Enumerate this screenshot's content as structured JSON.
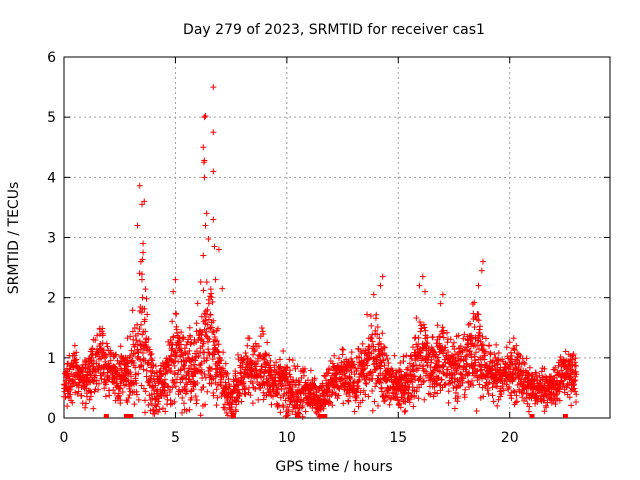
{
  "chart_data": {
    "type": "scatter",
    "title": "Day 279 of 2023, SRMTID for receiver cas1",
    "xlabel": "GPS time / hours",
    "ylabel": "SRMTID / TECUs",
    "xlim": [
      0,
      24.5
    ],
    "ylim": [
      0,
      6
    ],
    "xticks": [
      0,
      5,
      10,
      15,
      20
    ],
    "yticks": [
      0,
      1,
      2,
      3,
      4,
      5,
      6
    ],
    "grid": true,
    "marker": "+",
    "color": "#ff0000",
    "data_end_hours": 23.0,
    "envelope": {
      "description": "approximate typical level and spread of the point cloud over time (GPS hours -> TECU)",
      "hours": [
        0,
        0.5,
        1.0,
        1.5,
        2.0,
        2.5,
        3.0,
        3.5,
        4.0,
        4.5,
        5.0,
        5.5,
        6.0,
        6.5,
        7.0,
        7.5,
        8.0,
        8.5,
        9.0,
        9.5,
        10.0,
        10.5,
        11.0,
        11.5,
        12.0,
        12.5,
        13.0,
        13.5,
        14.0,
        14.5,
        15.0,
        15.5,
        16.0,
        16.5,
        17.0,
        17.5,
        18.0,
        18.5,
        19.0,
        19.5,
        20.0,
        20.5,
        21.0,
        21.5,
        22.0,
        22.5,
        23.0
      ],
      "typical": [
        0.5,
        0.8,
        0.6,
        1.0,
        0.8,
        0.6,
        0.9,
        1.4,
        0.4,
        0.5,
        1.1,
        0.8,
        1.0,
        1.5,
        0.6,
        0.3,
        0.7,
        0.9,
        0.8,
        0.6,
        0.5,
        0.4,
        0.5,
        0.3,
        0.6,
        0.7,
        0.6,
        0.8,
        1.1,
        0.6,
        0.5,
        0.6,
        1.0,
        0.9,
        1.0,
        0.8,
        0.9,
        1.2,
        0.8,
        0.7,
        0.8,
        0.7,
        0.5,
        0.5,
        0.5,
        0.8,
        0.7
      ],
      "spread": [
        0.2,
        0.3,
        0.3,
        0.4,
        0.3,
        0.3,
        0.4,
        0.9,
        0.3,
        0.3,
        0.6,
        0.4,
        0.6,
        0.9,
        0.4,
        0.2,
        0.3,
        0.4,
        0.4,
        0.3,
        0.3,
        0.3,
        0.2,
        0.2,
        0.3,
        0.3,
        0.3,
        0.4,
        0.5,
        0.3,
        0.3,
        0.3,
        0.6,
        0.4,
        0.4,
        0.4,
        0.4,
        0.6,
        0.3,
        0.3,
        0.3,
        0.3,
        0.2,
        0.2,
        0.2,
        0.3,
        0.3
      ]
    },
    "peaks": [
      {
        "x": 3.4,
        "y": 3.86
      },
      {
        "x": 3.5,
        "y": 3.55
      },
      {
        "x": 3.6,
        "y": 3.6
      },
      {
        "x": 3.55,
        "y": 2.9
      },
      {
        "x": 3.45,
        "y": 2.6
      },
      {
        "x": 3.5,
        "y": 2.3
      },
      {
        "x": 3.3,
        "y": 3.2
      },
      {
        "x": 3.55,
        "y": 2.75
      },
      {
        "x": 6.7,
        "y": 5.5
      },
      {
        "x": 6.3,
        "y": 5.0
      },
      {
        "x": 6.35,
        "y": 5.02
      },
      {
        "x": 6.7,
        "y": 4.75
      },
      {
        "x": 6.25,
        "y": 4.5
      },
      {
        "x": 6.3,
        "y": 4.28
      },
      {
        "x": 6.28,
        "y": 4.25
      },
      {
        "x": 6.7,
        "y": 4.1
      },
      {
        "x": 6.3,
        "y": 4.0
      },
      {
        "x": 6.4,
        "y": 3.4
      },
      {
        "x": 6.7,
        "y": 3.3
      },
      {
        "x": 6.35,
        "y": 3.2
      },
      {
        "x": 6.75,
        "y": 2.85
      },
      {
        "x": 6.95,
        "y": 2.8
      },
      {
        "x": 6.25,
        "y": 2.7
      },
      {
        "x": 6.8,
        "y": 2.3
      },
      {
        "x": 7.1,
        "y": 2.15
      },
      {
        "x": 6.5,
        "y": 1.9
      },
      {
        "x": 5.0,
        "y": 2.3
      },
      {
        "x": 4.9,
        "y": 2.1
      },
      {
        "x": 14.3,
        "y": 2.35
      },
      {
        "x": 14.2,
        "y": 2.2
      },
      {
        "x": 13.9,
        "y": 2.05
      },
      {
        "x": 16.1,
        "y": 2.35
      },
      {
        "x": 16.2,
        "y": 2.1
      },
      {
        "x": 15.95,
        "y": 2.2
      },
      {
        "x": 18.8,
        "y": 2.6
      },
      {
        "x": 18.75,
        "y": 2.45
      },
      {
        "x": 18.6,
        "y": 2.2
      },
      {
        "x": 17.0,
        "y": 2.05
      },
      {
        "x": 16.9,
        "y": 1.9
      },
      {
        "x": 13.6,
        "y": 1.72
      }
    ],
    "zero_markers_hours": [
      1.9,
      2.8,
      2.9,
      3.0,
      7.6,
      10.5,
      11.5,
      11.6,
      11.7,
      21.0,
      22.5
    ]
  }
}
